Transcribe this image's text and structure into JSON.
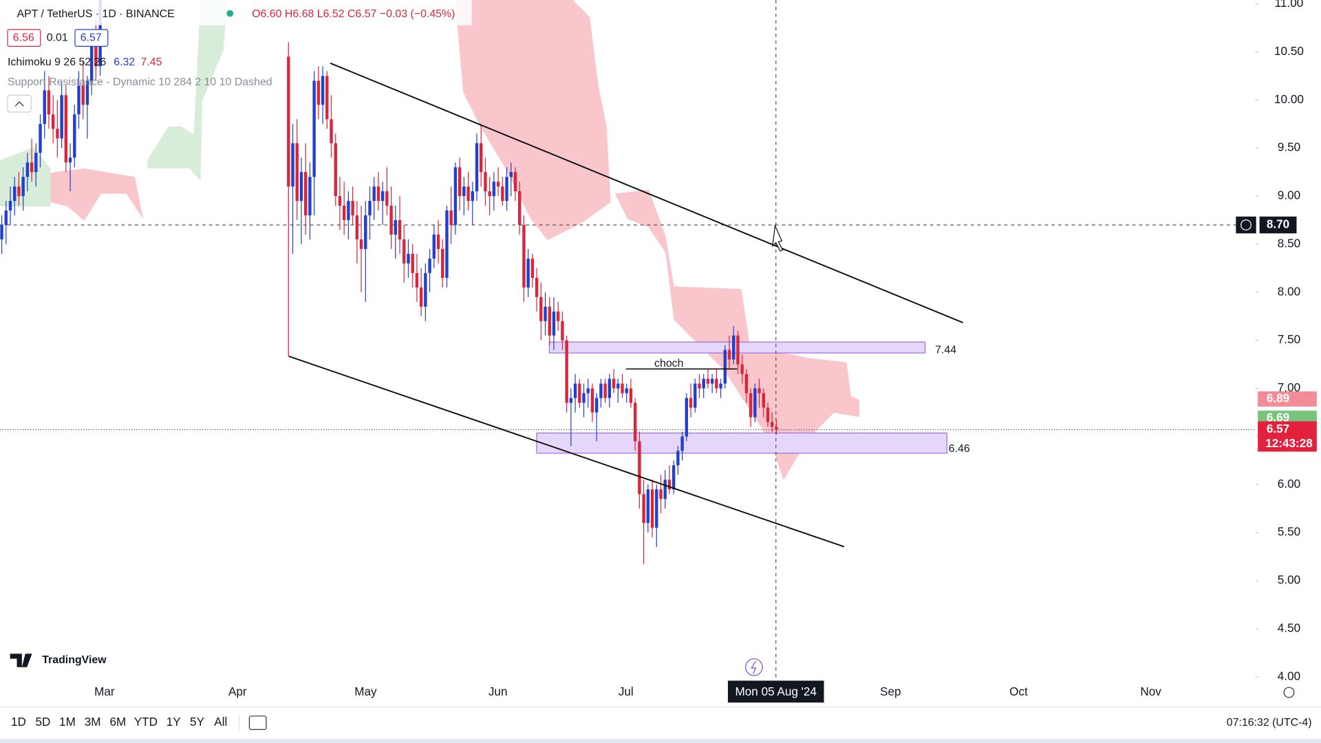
{
  "header": {
    "symbol": "APT / TetherUS · 1D · BINANCE",
    "ohlc": "O6.60 H6.68 L6.52 C6.57 −0.03 (−0.45%)",
    "bid": "6.56",
    "spread": "0.01",
    "ask": "6.57"
  },
  "indicators": [
    {
      "name": "Ichimoku 9 26 52 26",
      "values": [
        "6.32",
        "7.45"
      ]
    },
    {
      "name": "Support Resistance - Dynamic 10 284 2 10 10 Dashed"
    }
  ],
  "chart_data": {
    "type": "candlestick",
    "up_color": "#2340cc",
    "down_color": "#d8263c",
    "series": [
      {
        "values": [
          [
            8.55,
            8.8,
            8.4,
            8.7
          ],
          [
            8.7,
            8.95,
            8.5,
            8.85
          ],
          [
            8.85,
            9.1,
            8.7,
            8.95
          ],
          [
            8.95,
            9.2,
            8.8,
            9.1
          ],
          [
            9.1,
            9.25,
            8.9,
            9.0
          ],
          [
            9.0,
            9.3,
            8.85,
            9.2
          ],
          [
            9.2,
            9.45,
            9.05,
            9.35
          ],
          [
            9.35,
            9.6,
            9.15,
            9.25
          ],
          [
            9.25,
            9.55,
            9.1,
            9.45
          ],
          [
            9.45,
            9.85,
            9.3,
            9.75
          ],
          [
            9.75,
            10.3,
            9.6,
            10.1
          ],
          [
            10.1,
            10.25,
            9.7,
            9.85
          ],
          [
            9.85,
            10.05,
            9.55,
            9.7
          ],
          [
            9.7,
            10.0,
            9.4,
            9.6
          ],
          [
            9.6,
            10.2,
            9.5,
            10.05
          ],
          [
            10.05,
            10.15,
            9.25,
            9.35
          ],
          [
            9.35,
            9.55,
            9.05,
            9.4
          ],
          [
            9.4,
            9.95,
            9.3,
            9.85
          ],
          [
            9.85,
            10.3,
            9.7,
            10.15
          ],
          [
            10.15,
            10.4,
            9.8,
            9.95
          ],
          [
            9.95,
            10.25,
            9.6,
            10.2
          ],
          [
            10.2,
            10.7,
            10.05,
            10.6
          ],
          [
            10.6,
            10.85,
            10.2,
            10.35
          ],
          [
            10.35,
            11.2,
            10.25,
            11.05
          ]
        ]
      },
      {
        "values": [
          [
            10.45,
            10.6,
            7.33,
            9.1
          ],
          [
            9.1,
            9.75,
            8.4,
            9.55
          ],
          [
            9.55,
            9.8,
            8.75,
            8.95
          ],
          [
            8.95,
            9.4,
            8.5,
            9.25
          ],
          [
            9.25,
            9.55,
            8.6,
            8.8
          ],
          [
            8.8,
            9.35,
            8.55,
            9.2
          ],
          [
            9.2,
            10.3,
            8.8,
            10.2
          ],
          [
            10.2,
            10.35,
            9.8,
            9.95
          ],
          [
            9.95,
            10.35,
            9.75,
            10.25
          ],
          [
            10.25,
            10.3,
            9.7,
            9.8
          ],
          [
            9.8,
            10.05,
            9.4,
            9.55
          ],
          [
            9.55,
            9.65,
            8.9,
            9.0
          ],
          [
            9.0,
            9.2,
            8.65,
            8.9
          ],
          [
            8.9,
            9.15,
            8.6,
            8.75
          ],
          [
            8.75,
            9.05,
            8.55,
            8.95
          ],
          [
            8.95,
            9.1,
            8.7,
            8.8
          ],
          [
            8.8,
            8.95,
            8.3,
            8.55
          ],
          [
            8.55,
            8.9,
            8.0,
            8.45
          ],
          [
            8.45,
            8.95,
            7.9,
            8.8
          ],
          [
            8.8,
            9.1,
            8.55,
            8.95
          ],
          [
            8.95,
            9.2,
            8.75,
            9.1
          ],
          [
            9.1,
            9.25,
            8.85,
            8.95
          ],
          [
            8.95,
            9.15,
            8.7,
            9.05
          ],
          [
            9.05,
            9.3,
            8.8,
            8.9
          ],
          [
            8.9,
            9.1,
            8.45,
            8.6
          ],
          [
            8.6,
            8.9,
            8.35,
            8.75
          ],
          [
            8.75,
            9.0,
            8.4,
            8.55
          ],
          [
            8.55,
            8.7,
            8.1,
            8.3
          ],
          [
            8.3,
            8.55,
            8.15,
            8.4
          ],
          [
            8.4,
            8.5,
            8.05,
            8.2
          ],
          [
            8.2,
            8.4,
            7.9,
            8.05
          ],
          [
            8.05,
            8.25,
            7.75,
            7.85
          ],
          [
            7.85,
            8.3,
            7.7,
            8.2
          ],
          [
            8.2,
            8.45,
            8.0,
            8.35
          ],
          [
            8.35,
            8.7,
            8.25,
            8.6
          ],
          [
            8.6,
            8.75,
            8.3,
            8.45
          ],
          [
            8.45,
            8.55,
            8.05,
            8.15
          ],
          [
            8.15,
            8.9,
            8.05,
            8.85
          ],
          [
            8.85,
            9.1,
            8.5,
            8.7
          ],
          [
            8.7,
            9.35,
            8.6,
            9.3
          ],
          [
            9.3,
            9.4,
            8.85,
            9.0
          ],
          [
            9.0,
            9.2,
            8.8,
            9.1
          ],
          [
            9.1,
            9.25,
            8.85,
            8.95
          ],
          [
            8.95,
            9.15,
            8.7,
            9.05
          ],
          [
            9.05,
            9.65,
            8.95,
            9.55
          ],
          [
            9.55,
            9.75,
            9.1,
            9.25
          ],
          [
            9.25,
            9.4,
            8.9,
            9.05
          ],
          [
            9.05,
            9.2,
            8.8,
            9.0
          ],
          [
            9.0,
            9.25,
            8.85,
            9.15
          ],
          [
            9.15,
            9.3,
            9.0,
            9.1
          ],
          [
            9.1,
            9.2,
            8.9,
            8.95
          ],
          [
            8.95,
            9.3,
            8.85,
            9.2
          ],
          [
            9.2,
            9.35,
            9.0,
            9.25
          ],
          [
            9.25,
            9.3,
            8.95,
            9.05
          ],
          [
            9.05,
            9.15,
            8.6,
            8.7
          ],
          [
            8.7,
            8.8,
            7.9,
            8.05
          ],
          [
            8.05,
            8.45,
            7.95,
            8.35
          ],
          [
            8.35,
            8.4,
            8.05,
            8.15
          ],
          [
            8.15,
            8.25,
            7.8,
            7.95
          ],
          [
            7.95,
            8.1,
            7.5,
            7.7
          ],
          [
            7.7,
            8.0,
            7.55,
            7.85
          ],
          [
            7.85,
            7.95,
            7.45,
            7.55
          ],
          [
            7.55,
            7.95,
            7.4,
            7.8
          ],
          [
            7.8,
            7.9,
            7.6,
            7.7
          ],
          [
            7.7,
            7.8,
            7.4,
            7.5
          ],
          [
            7.5,
            7.55,
            6.75,
            6.85
          ],
          [
            6.85,
            7.0,
            6.4,
            6.9
          ],
          [
            6.9,
            7.15,
            6.75,
            7.05
          ],
          [
            7.05,
            7.1,
            6.8,
            6.85
          ],
          [
            6.85,
            7.05,
            6.7,
            6.95
          ],
          [
            6.95,
            7.1,
            6.8,
            7.0
          ],
          [
            7.0,
            7.05,
            6.65,
            6.75
          ],
          [
            6.75,
            6.95,
            6.45,
            6.9
          ],
          [
            6.9,
            7.1,
            6.8,
            7.05
          ],
          [
            7.05,
            7.1,
            6.85,
            6.9
          ],
          [
            6.9,
            7.15,
            6.8,
            7.1
          ],
          [
            7.1,
            7.2,
            6.95,
            7.0
          ],
          [
            7.0,
            7.1,
            6.85,
            7.05
          ],
          [
            7.05,
            7.15,
            6.9,
            6.95
          ],
          [
            6.95,
            7.05,
            6.85,
            7.0
          ],
          [
            7.0,
            7.1,
            6.8,
            6.85
          ],
          [
            6.85,
            6.9,
            6.35,
            6.45
          ],
          [
            6.45,
            6.55,
            5.75,
            5.9
          ],
          [
            5.9,
            6.05,
            5.17,
            5.6
          ],
          [
            5.6,
            6.0,
            5.5,
            5.95
          ],
          [
            5.95,
            6.05,
            5.45,
            5.55
          ],
          [
            5.55,
            6.0,
            5.35,
            5.95
          ],
          [
            5.95,
            6.1,
            5.7,
            5.85
          ],
          [
            5.85,
            6.15,
            5.75,
            6.05
          ],
          [
            6.05,
            6.2,
            5.9,
            5.95
          ],
          [
            5.95,
            6.25,
            5.9,
            6.2
          ],
          [
            6.2,
            6.4,
            6.1,
            6.35
          ],
          [
            6.35,
            6.55,
            6.25,
            6.5
          ],
          [
            6.5,
            6.95,
            6.45,
            6.9
          ],
          [
            6.9,
            7.05,
            6.7,
            6.8
          ],
          [
            6.8,
            7.1,
            6.75,
            7.05
          ],
          [
            7.05,
            7.15,
            6.9,
            7.0
          ],
          [
            7.0,
            7.15,
            6.9,
            7.1
          ],
          [
            7.1,
            7.2,
            7.0,
            7.05
          ],
          [
            7.05,
            7.15,
            6.95,
            7.1
          ],
          [
            7.1,
            7.2,
            6.95,
            7.0
          ],
          [
            7.0,
            7.1,
            6.9,
            7.05
          ],
          [
            7.05,
            7.45,
            7.0,
            7.4
          ],
          [
            7.4,
            7.55,
            7.2,
            7.3
          ],
          [
            7.3,
            7.65,
            7.25,
            7.55
          ],
          [
            7.55,
            7.6,
            7.15,
            7.25
          ],
          [
            7.25,
            7.35,
            7.05,
            7.15
          ],
          [
            7.15,
            7.2,
            6.85,
            6.95
          ],
          [
            6.95,
            7.0,
            6.6,
            6.7
          ],
          [
            6.7,
            7.05,
            6.65,
            7.0
          ],
          [
            7.0,
            7.1,
            6.8,
            6.95
          ],
          [
            6.95,
            7.0,
            6.7,
            6.8
          ],
          [
            6.8,
            6.85,
            6.6,
            6.65
          ],
          [
            6.65,
            6.75,
            6.55,
            6.6
          ],
          [
            6.6,
            6.68,
            6.52,
            6.57
          ]
        ]
      }
    ],
    "ylim": [
      3.96,
      11.04
    ],
    "yticks": [
      {
        "value": 4,
        "label": "4.00"
      },
      {
        "value": 4.5,
        "label": "4.50"
      },
      {
        "value": 5,
        "label": "5.00"
      },
      {
        "value": 5.5,
        "label": "5.50"
      },
      {
        "value": 6,
        "label": "6.00"
      },
      {
        "value": 6.5,
        "label": "6.50"
      },
      {
        "value": 7,
        "label": "7.00"
      },
      {
        "value": 7.5,
        "label": "7.50"
      },
      {
        "value": 8,
        "label": "8.00"
      },
      {
        "value": 8.5,
        "label": "8.50"
      },
      {
        "value": 9,
        "label": "9.00"
      },
      {
        "value": 9.5,
        "label": "9.50"
      },
      {
        "value": 10,
        "label": "10.00"
      },
      {
        "value": 10.5,
        "label": "10.50"
      },
      {
        "value": 11,
        "label": "11.00"
      }
    ],
    "x_labels": [
      "Mar",
      "Apr",
      "May",
      "Jun",
      "Jul",
      "Sep",
      "Oct",
      "Nov"
    ],
    "annotations": [
      {
        "text": "choch"
      }
    ],
    "levels": [
      7.44,
      6.46
    ],
    "price_tags": [
      {
        "value": 6.89,
        "color": "#f28d98"
      },
      {
        "value": 6.69,
        "color": "#79c47c"
      },
      {
        "value": 6.57,
        "color": "#e3213d",
        "countdown": "12:43:28"
      }
    ],
    "crosshair": {
      "price": {
        "value": 8.7,
        "label": "8.70"
      },
      "date": "Mon 05 Aug '24"
    }
  },
  "branding": "TradingView",
  "toolbar": {
    "ranges": [
      "1D",
      "5D",
      "1M",
      "3M",
      "6M",
      "YTD",
      "1Y",
      "5Y",
      "All"
    ],
    "clock": "07:16:32 (UTC-4)"
  }
}
